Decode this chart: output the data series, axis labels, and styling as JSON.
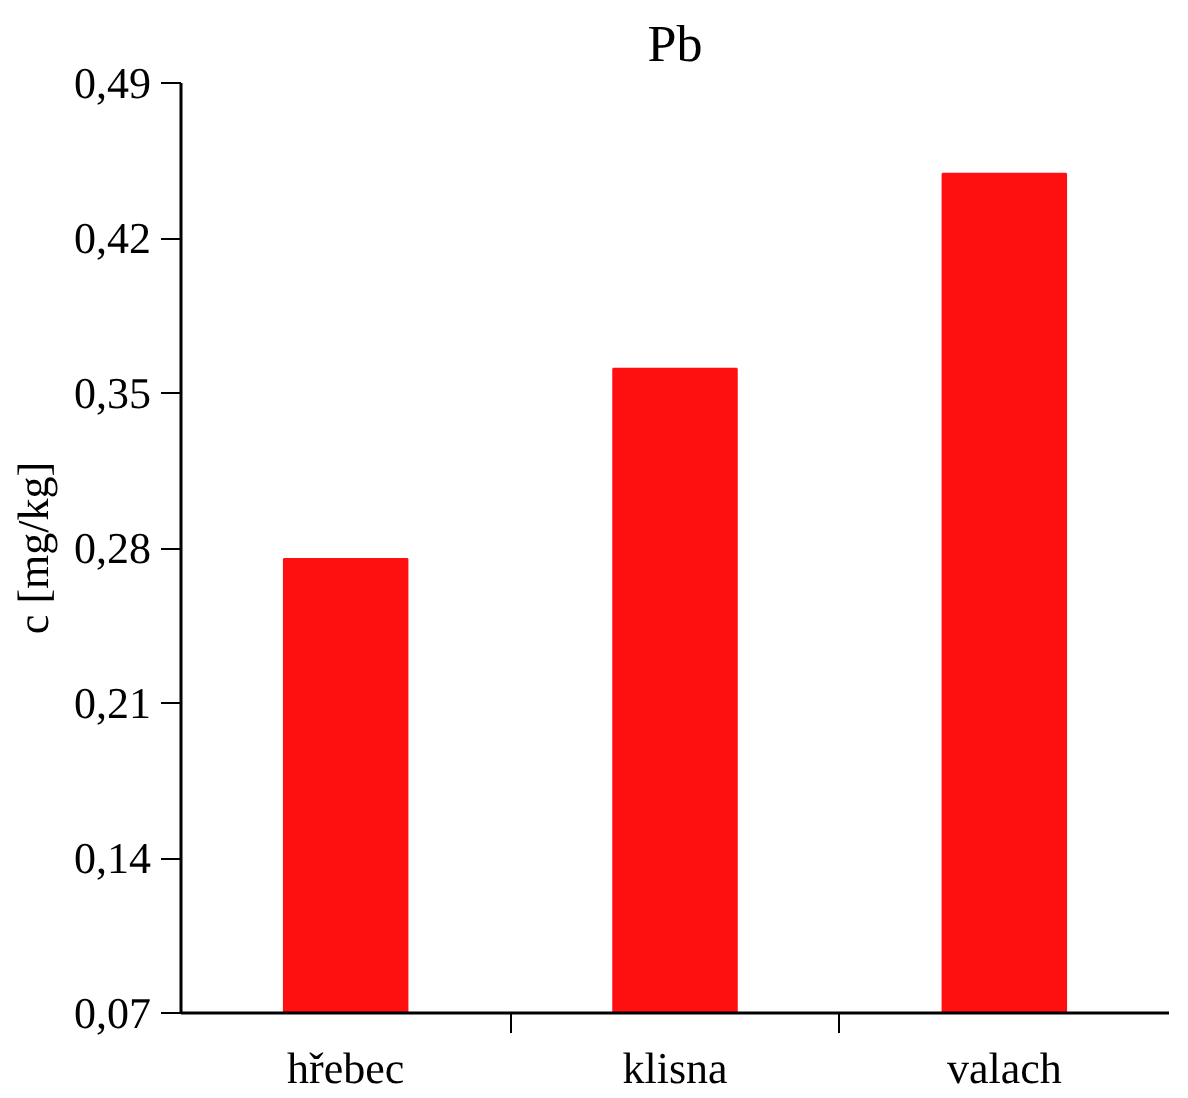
{
  "chart_data": {
    "type": "bar",
    "title": "Pb",
    "ylabel": "c [mg/kg]",
    "categories": [
      "hřebec",
      "klisna",
      "valach"
    ],
    "values": [
      0.275,
      0.361,
      0.449
    ],
    "color": "#ff1010",
    "ylim": [
      0.07,
      0.49
    ],
    "yticks": [
      {
        "value": 0.07,
        "label": "0,07"
      },
      {
        "value": 0.14,
        "label": "0,14"
      },
      {
        "value": 0.21,
        "label": "0,21"
      },
      {
        "value": 0.28,
        "label": "0,28"
      },
      {
        "value": 0.35,
        "label": "0,35"
      },
      {
        "value": 0.42,
        "label": "0,42"
      },
      {
        "value": 0.49,
        "label": "0,49"
      }
    ],
    "grid": false
  }
}
